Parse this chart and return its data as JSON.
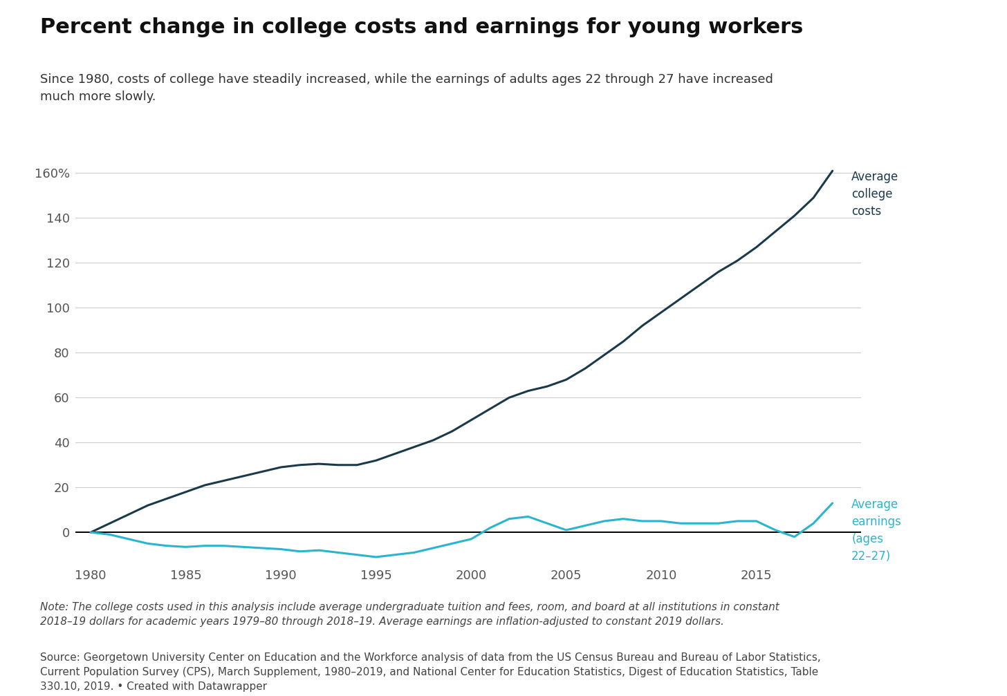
{
  "title": "Percent change in college costs and earnings for young workers",
  "subtitle": "Since 1980, costs of college have steadily increased, while the earnings of adults ages 22 through 27 have increased\nmuch more slowly.",
  "note": "Note: The college costs used in this analysis include average undergraduate tuition and fees, room, and board at all institutions in constant\n2018–19 dollars for academic years 1979–80 through 2018–19. Average earnings are inflation-adjusted to constant 2019 dollars.",
  "source": "Source: Georgetown University Center on Education and the Workforce analysis of data from the US Census Bureau and Bureau of Labor Statistics,\nCurrent Population Survey (CPS), March Supplement, 1980–2019, and National Center for Education Statistics, Digest of Education Statistics, Table\n330.10, 2019. • Created with Datawrapper",
  "college_costs_color": "#1a3a4a",
  "earnings_color": "#29b5d0",
  "bg_color": "#ffffff",
  "grid_color": "#cccccc",
  "college_costs_years": [
    1980,
    1981,
    1982,
    1983,
    1984,
    1985,
    1986,
    1987,
    1988,
    1989,
    1990,
    1991,
    1992,
    1993,
    1994,
    1995,
    1996,
    1997,
    1998,
    1999,
    2000,
    2001,
    2002,
    2003,
    2004,
    2005,
    2006,
    2007,
    2008,
    2009,
    2010,
    2011,
    2012,
    2013,
    2014,
    2015,
    2016,
    2017,
    2018,
    2019
  ],
  "college_costs_vals": [
    0,
    4,
    8,
    12,
    15,
    18,
    21,
    23,
    25,
    27,
    29,
    30,
    30.5,
    30,
    30,
    32,
    35,
    38,
    41,
    45,
    50,
    55,
    60,
    63,
    65,
    68,
    73,
    79,
    85,
    92,
    98,
    104,
    110,
    116,
    121,
    127,
    134,
    141,
    149,
    161
  ],
  "earnings_years": [
    1980,
    1981,
    1982,
    1983,
    1984,
    1985,
    1986,
    1987,
    1988,
    1989,
    1990,
    1991,
    1992,
    1993,
    1994,
    1995,
    1996,
    1997,
    1998,
    1999,
    2000,
    2001,
    2002,
    2003,
    2004,
    2005,
    2006,
    2007,
    2008,
    2009,
    2010,
    2011,
    2012,
    2013,
    2014,
    2015,
    2016,
    2017,
    2018,
    2019
  ],
  "earnings_vals": [
    0,
    -1,
    -3,
    -5,
    -6,
    -6.5,
    -6,
    -6,
    -6.5,
    -7,
    -7.5,
    -8.5,
    -8,
    -9,
    -10,
    -11,
    -10,
    -9,
    -7,
    -5,
    -3,
    2,
    6,
    7,
    4,
    1,
    3,
    5,
    6,
    5,
    5,
    4,
    4,
    4,
    5,
    5,
    1,
    -2,
    4,
    13
  ],
  "yticks": [
    0,
    20,
    40,
    60,
    80,
    100,
    120,
    140,
    160
  ],
  "xticks": [
    1980,
    1985,
    1990,
    1995,
    2000,
    2005,
    2010,
    2015
  ],
  "label_costs": "Average\ncollege\ncosts",
  "label_earnings": "Average\nearnings\n(ages\n22–27)",
  "title_fontsize": 22,
  "subtitle_fontsize": 13,
  "note_fontsize": 11,
  "source_fontsize": 11,
  "axis_fontsize": 13
}
